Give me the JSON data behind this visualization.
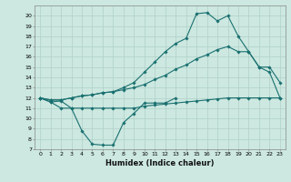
{
  "title": "",
  "xlabel": "Humidex (Indice chaleur)",
  "bg_color": "#cce8e0",
  "grid_color": "#b0d0c8",
  "line_color": "#1a7070",
  "xlim": [
    -0.5,
    23.5
  ],
  "ylim": [
    7,
    21
  ],
  "yticks": [
    7,
    8,
    9,
    10,
    11,
    12,
    13,
    14,
    15,
    16,
    17,
    18,
    19,
    20
  ],
  "xticks": [
    0,
    1,
    2,
    3,
    4,
    5,
    6,
    7,
    8,
    9,
    10,
    11,
    12,
    13,
    14,
    15,
    16,
    17,
    18,
    19,
    20,
    21,
    22,
    23
  ],
  "series": [
    {
      "x": [
        0,
        1,
        2,
        3,
        4,
        5,
        6,
        7,
        8,
        9,
        10,
        11,
        12,
        13
      ],
      "y": [
        12,
        11.6,
        11.7,
        11.0,
        8.8,
        7.5,
        7.4,
        7.4,
        9.6,
        10.5,
        11.5,
        11.5,
        11.5,
        12.0
      ]
    },
    {
      "x": [
        0,
        1,
        2,
        3,
        4,
        5,
        6,
        7,
        8,
        9,
        10,
        11,
        12,
        13,
        14,
        15,
        16,
        17,
        18,
        19,
        20,
        21,
        22,
        23
      ],
      "y": [
        12,
        11.6,
        11.0,
        11.0,
        11.0,
        11.0,
        11.0,
        11.0,
        11.0,
        11.0,
        11.2,
        11.3,
        11.4,
        11.5,
        11.6,
        11.7,
        11.8,
        11.9,
        12.0,
        12.0,
        12.0,
        12.0,
        12.0,
        12.0
      ]
    },
    {
      "x": [
        0,
        1,
        2,
        3,
        4,
        5,
        6,
        7,
        8,
        9,
        10,
        11,
        12,
        13,
        14,
        15,
        16,
        17,
        18,
        19,
        20,
        21,
        22,
        23
      ],
      "y": [
        12,
        11.8,
        11.8,
        12.0,
        12.2,
        12.3,
        12.5,
        12.6,
        12.8,
        13.0,
        13.3,
        13.8,
        14.2,
        14.8,
        15.2,
        15.8,
        16.2,
        16.7,
        17.0,
        16.5,
        16.5,
        15.0,
        14.5,
        12.0
      ]
    },
    {
      "comment": "top zigzag line - peaks at x=15(20.2), x=16(20.3), x=18(20.0), drops to ~13.5 at x=23",
      "x": [
        0,
        1,
        2,
        3,
        4,
        5,
        6,
        7,
        8,
        9,
        10,
        11,
        12,
        13,
        14,
        15,
        16,
        17,
        18,
        19,
        20,
        21,
        22,
        23
      ],
      "y": [
        12,
        11.8,
        11.8,
        12.0,
        12.2,
        12.3,
        12.5,
        12.6,
        13.0,
        13.5,
        14.5,
        15.5,
        16.5,
        17.3,
        17.8,
        20.2,
        20.3,
        19.5,
        20.0,
        18.0,
        16.5,
        15.0,
        15.0,
        13.5
      ]
    }
  ]
}
